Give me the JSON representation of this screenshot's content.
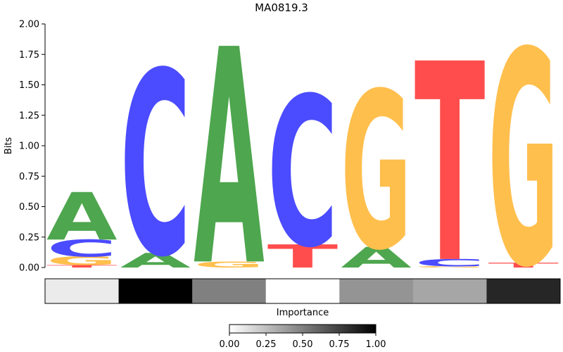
{
  "chart_data": {
    "type": "sequence-logo",
    "title": "MA0819.3",
    "ylabel": "Bits",
    "ylim": [
      0,
      2
    ],
    "yticks": [
      "0.00",
      "0.25",
      "0.50",
      "0.75",
      "1.00",
      "1.25",
      "1.50",
      "1.75",
      "2.00"
    ],
    "letter_colors": {
      "A": "#4ea64e",
      "C": "#4b4bff",
      "G": "#ffbf4d",
      "T": "#ff4d4d"
    },
    "positions": [
      {
        "position": 1,
        "stack": [
          [
            "T",
            0.02
          ],
          [
            "G",
            0.07
          ],
          [
            "C",
            0.14
          ],
          [
            "A",
            0.39
          ]
        ]
      },
      {
        "position": 2,
        "stack": [
          [
            "A",
            0.12
          ],
          [
            "C",
            1.51
          ]
        ]
      },
      {
        "position": 3,
        "stack": [
          [
            "G",
            0.05
          ],
          [
            "A",
            1.77
          ]
        ]
      },
      {
        "position": 4,
        "stack": [
          [
            "T",
            0.19
          ],
          [
            "C",
            1.23
          ]
        ]
      },
      {
        "position": 5,
        "stack": [
          [
            "A",
            0.17
          ],
          [
            "G",
            1.29
          ]
        ]
      },
      {
        "position": 6,
        "stack": [
          [
            "G",
            0.01
          ],
          [
            "C",
            0.06
          ],
          [
            "T",
            1.63
          ]
        ]
      },
      {
        "position": 7,
        "stack": [
          [
            "T",
            0.04
          ],
          [
            "G",
            1.76
          ]
        ]
      }
    ],
    "importance": {
      "label": "Importance",
      "values": [
        0.08,
        1.0,
        0.5,
        0.0,
        0.42,
        0.35,
        0.85
      ]
    },
    "colorbar": {
      "range": [
        0,
        1
      ],
      "ticks": [
        "0.00",
        "0.25",
        "0.50",
        "0.75",
        "1.00"
      ]
    }
  }
}
